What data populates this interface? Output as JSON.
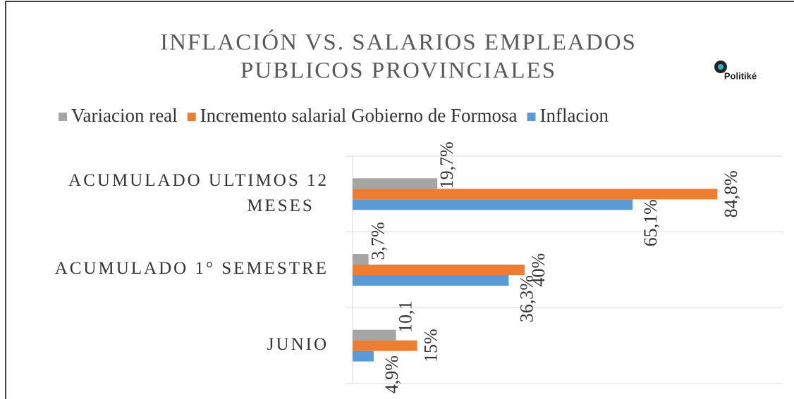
{
  "chart_data": {
    "type": "hbar",
    "title": [
      "INFLACIÓN VS. SALARIOS EMPLEADOS",
      "PUBLICOS PROVINCIALES"
    ],
    "logo": "Politiké",
    "categories": [
      "ACUMULADO ULTIMOS 12 MESES",
      "ACUMULADO 1° SEMESTRE",
      "JUNIO"
    ],
    "series": [
      {
        "name": "Variacion real",
        "color": "#a5a5a5",
        "values": [
          19.7,
          3.7,
          10.1
        ],
        "value_labels": [
          "19,7%",
          "3,7%",
          "10,1"
        ]
      },
      {
        "name": "Incremento salarial Gobierno de Formosa",
        "color": "#ed7d31",
        "values": [
          84.8,
          40,
          15
        ],
        "value_labels": [
          "84,8%",
          "40%",
          "15%"
        ]
      },
      {
        "name": "Inflacion",
        "color": "#5b9bd5",
        "values": [
          65.1,
          36.3,
          4.9
        ],
        "value_labels": [
          "65,1%",
          "36,3%",
          "4,9%"
        ]
      }
    ],
    "xlim": [
      0,
      100
    ]
  }
}
